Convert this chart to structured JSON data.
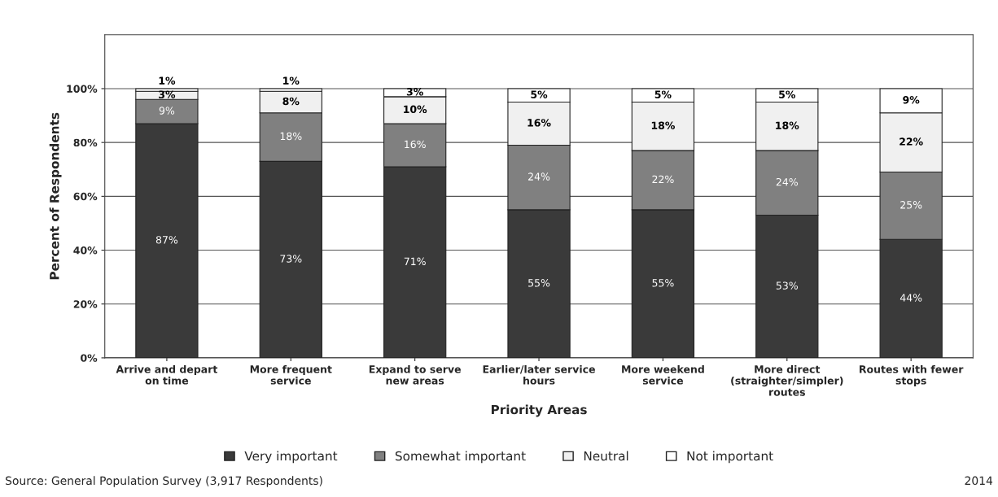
{
  "chart_data": {
    "type": "bar",
    "stacked": true,
    "xlabel": "Priority Areas",
    "ylabel": "Percent of Respondents",
    "categories": [
      "Arrive and depart\non time",
      "More frequent\nservice",
      "Expand to serve\nnew areas",
      "Earlier/later service\nhours",
      "More weekend\nservice",
      "More direct\n(straighter/simpler)\nroutes",
      "Routes with fewer\nstops"
    ],
    "series": [
      {
        "name": "Very important",
        "color": "#3a3a3a",
        "values": [
          87,
          73,
          71,
          55,
          55,
          53,
          44
        ],
        "value_labels": [
          "87%",
          "73%",
          "71%",
          "55%",
          "55%",
          "53%",
          "44%"
        ]
      },
      {
        "name": "Somewhat important",
        "color": "#808080",
        "values": [
          9,
          18,
          16,
          24,
          22,
          24,
          25
        ],
        "value_labels": [
          "9%",
          "18%",
          "16%",
          "24%",
          "22%",
          "24%",
          "25%"
        ]
      },
      {
        "name": "Neutral",
        "color": "#f0f0f0",
        "values": [
          3,
          8,
          10,
          16,
          18,
          18,
          22
        ],
        "value_labels": [
          "3%",
          "8%",
          "10%",
          "16%",
          "18%",
          "18%",
          "22%"
        ]
      },
      {
        "name": "Not important",
        "color": "#ffffff",
        "values": [
          1,
          1,
          3,
          5,
          5,
          5,
          9
        ],
        "value_labels": [
          "1%",
          "1%",
          "3%",
          "5%",
          "5%",
          "5%",
          "9%"
        ]
      }
    ],
    "ylim": [
      0,
      120
    ],
    "yticks": [
      {
        "value": 0,
        "label": "0%"
      },
      {
        "value": 20,
        "label": "20%"
      },
      {
        "value": 40,
        "label": "40%"
      },
      {
        "value": 60,
        "label": "60%"
      },
      {
        "value": 80,
        "label": "80%"
      },
      {
        "value": 100,
        "label": "100%"
      }
    ],
    "grid": "y",
    "legend": "bottom",
    "annotations": [
      "Source: General Population Survey (3,917 Respondents)",
      "2014"
    ]
  }
}
